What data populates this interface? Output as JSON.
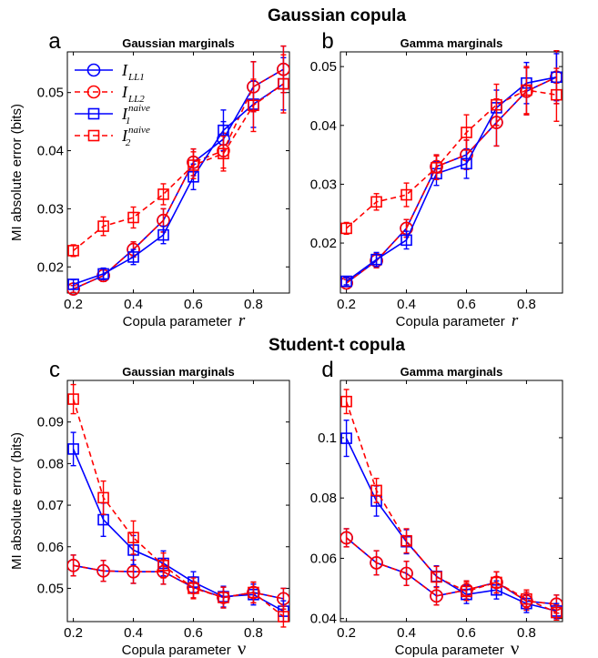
{
  "figure": {
    "row_titles": [
      "Gaussian copula",
      "Student-t copula"
    ]
  },
  "colors": {
    "I_LL1": "#0000ff",
    "I_LL2": "#ff0000",
    "I1_naive": "#0000ff",
    "I2_naive": "#ff0000"
  },
  "chart_data": [
    {
      "panel": "a",
      "type": "line",
      "title": "Gaussian marginals",
      "xlabel": "Copula parameter",
      "xsymbol": "r",
      "ylabel": "MI absolute error (bits)",
      "xlim": [
        0.18,
        0.92
      ],
      "ylim": [
        0.0155,
        0.057
      ],
      "xticks": [
        "0.2",
        "0.4",
        "0.6",
        "0.8"
      ],
      "yticks": [
        "0.02",
        "0.03",
        "0.04",
        "0.05"
      ],
      "x": [
        0.2,
        0.3,
        0.4,
        0.5,
        0.6,
        0.7,
        0.8,
        0.9
      ],
      "legend": {
        "position": "top-left",
        "entries": [
          {
            "main": "I",
            "sub": "LL1",
            "sup": ""
          },
          {
            "main": "I",
            "sub": "LL2",
            "sup": ""
          },
          {
            "main": "I",
            "sub": "1",
            "sup": "naive"
          },
          {
            "main": "I",
            "sub": "2",
            "sup": "naive"
          }
        ]
      },
      "series": [
        {
          "key": "I_LL1",
          "marker": "circle",
          "dash": false,
          "values": [
            0.0162,
            0.0185,
            0.023,
            0.028,
            0.038,
            0.042,
            0.051,
            0.054
          ],
          "err": [
            0.0006,
            0.001,
            0.0013,
            0.002,
            0.0023,
            0.003,
            0.0043,
            0.004
          ]
        },
        {
          "key": "I_LL2",
          "marker": "circle",
          "dash": true,
          "values": [
            0.0162,
            0.0185,
            0.023,
            0.028,
            0.038,
            0.04,
            0.051,
            0.054
          ],
          "err": [
            0.0006,
            0.001,
            0.0013,
            0.002,
            0.0023,
            0.003,
            0.0043,
            0.004
          ]
        },
        {
          "key": "I1_naive",
          "marker": "square",
          "dash": false,
          "values": [
            0.017,
            0.0188,
            0.0217,
            0.0255,
            0.0355,
            0.0435,
            0.048,
            0.0515
          ],
          "err": [
            0.0008,
            0.001,
            0.0013,
            0.0015,
            0.0022,
            0.0035,
            0.004,
            0.0045
          ]
        },
        {
          "key": "I2_naive",
          "marker": "square",
          "dash": true,
          "values": [
            0.0228,
            0.027,
            0.0285,
            0.0325,
            0.0375,
            0.0395,
            0.0478,
            0.0515
          ],
          "err": [
            0.001,
            0.0016,
            0.0018,
            0.0018,
            0.0023,
            0.003,
            0.0045,
            0.005
          ]
        }
      ]
    },
    {
      "panel": "b",
      "type": "line",
      "title": "Gamma marginals",
      "xlabel": "Copula parameter",
      "xsymbol": "r",
      "ylabel": "",
      "xlim": [
        0.18,
        0.92
      ],
      "ylim": [
        0.0115,
        0.0525
      ],
      "xticks": [
        "0.2",
        "0.4",
        "0.6",
        "0.8"
      ],
      "yticks": [
        "0.02",
        "0.03",
        "0.04",
        "0.05"
      ],
      "x": [
        0.2,
        0.3,
        0.4,
        0.5,
        0.6,
        0.7,
        0.8,
        0.9
      ],
      "series": [
        {
          "key": "I_LL1",
          "marker": "circle",
          "dash": false,
          "values": [
            0.0132,
            0.017,
            0.0225,
            0.033,
            0.035,
            0.0405,
            0.0458,
            0.0482
          ],
          "err": [
            0.0006,
            0.0012,
            0.0015,
            0.002,
            0.0025,
            0.004,
            0.004,
            0.0045
          ]
        },
        {
          "key": "I_LL2",
          "marker": "circle",
          "dash": true,
          "values": [
            0.0132,
            0.017,
            0.0225,
            0.033,
            0.035,
            0.0405,
            0.0458,
            0.0482
          ],
          "err": [
            0.0006,
            0.0012,
            0.0015,
            0.002,
            0.0025,
            0.004,
            0.004,
            0.0045
          ]
        },
        {
          "key": "I1_naive",
          "marker": "square",
          "dash": false,
          "values": [
            0.0135,
            0.0172,
            0.0205,
            0.0318,
            0.0335,
            0.043,
            0.0472,
            0.0482
          ],
          "err": [
            0.0006,
            0.0012,
            0.0015,
            0.002,
            0.0025,
            0.003,
            0.0035,
            0.004
          ]
        },
        {
          "key": "I2_naive",
          "marker": "square",
          "dash": true,
          "values": [
            0.0225,
            0.027,
            0.0282,
            0.0328,
            0.0388,
            0.0435,
            0.046,
            0.0452
          ],
          "err": [
            0.001,
            0.0014,
            0.002,
            0.002,
            0.003,
            0.0035,
            0.004,
            0.0045
          ]
        }
      ]
    },
    {
      "panel": "c",
      "type": "line",
      "title": "Gaussian marginals",
      "xlabel": "Copula parameter",
      "xsymbol": "ν",
      "ylabel": "MI absolute error (bits)",
      "xlim": [
        0.18,
        0.92
      ],
      "ylim": [
        0.042,
        0.1
      ],
      "xticks": [
        "0.2",
        "0.4",
        "0.6",
        "0.8"
      ],
      "yticks": [
        "0.05",
        "0.06",
        "0.07",
        "0.08",
        "0.09"
      ],
      "x": [
        0.2,
        0.3,
        0.4,
        0.5,
        0.6,
        0.7,
        0.8,
        0.9
      ],
      "series": [
        {
          "key": "I_LL1",
          "marker": "circle",
          "dash": false,
          "values": [
            0.0555,
            0.0542,
            0.054,
            0.054,
            0.0502,
            0.0478,
            0.049,
            0.0475
          ],
          "err": [
            0.0025,
            0.0025,
            0.0028,
            0.003,
            0.0025,
            0.0025,
            0.0025,
            0.0025
          ]
        },
        {
          "key": "I_LL2",
          "marker": "circle",
          "dash": true,
          "values": [
            0.0555,
            0.0542,
            0.054,
            0.054,
            0.0502,
            0.0478,
            0.049,
            0.0475
          ],
          "err": [
            0.0025,
            0.0025,
            0.0028,
            0.003,
            0.0025,
            0.0025,
            0.0025,
            0.0025
          ]
        },
        {
          "key": "I1_naive",
          "marker": "square",
          "dash": false,
          "values": [
            0.0835,
            0.0665,
            0.0592,
            0.056,
            0.0515,
            0.048,
            0.0485,
            0.0445
          ],
          "err": [
            0.004,
            0.004,
            0.0035,
            0.003,
            0.0025,
            0.0025,
            0.0025,
            0.0025
          ]
        },
        {
          "key": "I2_naive",
          "marker": "square",
          "dash": true,
          "values": [
            0.0955,
            0.0718,
            0.0622,
            0.0555,
            0.05,
            0.0478,
            0.049,
            0.0432
          ],
          "err": [
            0.0035,
            0.004,
            0.004,
            0.003,
            0.0025,
            0.0025,
            0.0025,
            0.0025
          ]
        }
      ]
    },
    {
      "panel": "d",
      "type": "line",
      "title": "Gamma marginals",
      "xlabel": "Copula parameter",
      "xsymbol": "ν",
      "ylabel": "",
      "xlim": [
        0.18,
        0.92
      ],
      "ylim": [
        0.039,
        0.119
      ],
      "xticks": [
        "0.2",
        "0.4",
        "0.6",
        "0.8"
      ],
      "yticks": [
        "0.04",
        "0.06",
        "0.08",
        "0.1"
      ],
      "x": [
        0.2,
        0.3,
        0.4,
        0.5,
        0.6,
        0.7,
        0.8,
        0.9
      ],
      "series": [
        {
          "key": "I_LL1",
          "marker": "circle",
          "dash": false,
          "values": [
            0.0668,
            0.0585,
            0.055,
            0.0475,
            0.0495,
            0.052,
            0.0458,
            0.0448
          ],
          "err": [
            0.003,
            0.004,
            0.004,
            0.003,
            0.003,
            0.0035,
            0.003,
            0.003
          ]
        },
        {
          "key": "I_LL2",
          "marker": "circle",
          "dash": true,
          "values": [
            0.0668,
            0.0585,
            0.055,
            0.0475,
            0.0495,
            0.052,
            0.0458,
            0.0448
          ],
          "err": [
            0.003,
            0.004,
            0.004,
            0.003,
            0.003,
            0.0035,
            0.003,
            0.003
          ]
        },
        {
          "key": "I1_naive",
          "marker": "square",
          "dash": false,
          "values": [
            0.0998,
            0.079,
            0.0655,
            0.054,
            0.048,
            0.0495,
            0.045,
            0.0425
          ],
          "err": [
            0.006,
            0.005,
            0.004,
            0.0035,
            0.003,
            0.003,
            0.003,
            0.0025
          ]
        },
        {
          "key": "I2_naive",
          "marker": "square",
          "dash": true,
          "values": [
            0.112,
            0.0825,
            0.0658,
            0.0538,
            0.049,
            0.052,
            0.0465,
            0.042
          ],
          "err": [
            0.004,
            0.004,
            0.004,
            0.0035,
            0.003,
            0.0035,
            0.003,
            0.0025
          ]
        }
      ]
    }
  ]
}
